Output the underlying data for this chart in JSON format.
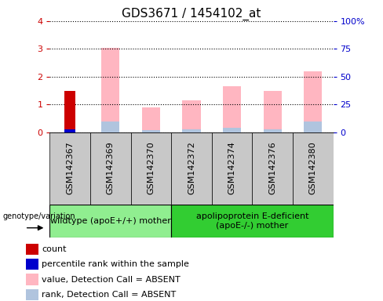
{
  "title": "GDS3671 / 1454102_at",
  "samples": [
    "GSM142367",
    "GSM142369",
    "GSM142370",
    "GSM142372",
    "GSM142374",
    "GSM142376",
    "GSM142380"
  ],
  "groups": [
    "wildtype (apoE+/+) mother",
    "apolipoprotein E-deficient\n(apoE-/-) mother"
  ],
  "group_colors": [
    "#90EE90",
    "#32CD32"
  ],
  "ylim_left": [
    0,
    4
  ],
  "ylim_right": [
    0,
    100
  ],
  "yticks_left": [
    0,
    1,
    2,
    3,
    4
  ],
  "yticks_right": [
    0,
    25,
    50,
    75,
    100
  ],
  "yticklabels_right": [
    "0",
    "25",
    "50",
    "75",
    "100%"
  ],
  "red_bars": [
    1.5,
    0,
    0,
    0,
    0,
    0,
    0
  ],
  "blue_bars": [
    0.1,
    0,
    0,
    0,
    0,
    0,
    0
  ],
  "pink_bars": [
    0,
    3.05,
    0.9,
    1.15,
    1.65,
    1.5,
    2.2
  ],
  "lightblue_bars": [
    0,
    0.38,
    0.07,
    0.12,
    0.18,
    0.12,
    0.38
  ],
  "red_color": "#CC0000",
  "blue_color": "#0000CC",
  "pink_color": "#FFB6C1",
  "lightblue_color": "#B0C4DE",
  "grey_color": "#C8C8C8",
  "left_axis_color": "#CC0000",
  "right_axis_color": "#0000CC",
  "legend_items": [
    {
      "label": "count",
      "color": "#CC0000"
    },
    {
      "label": "percentile rank within the sample",
      "color": "#0000CC"
    },
    {
      "label": "value, Detection Call = ABSENT",
      "color": "#FFB6C1"
    },
    {
      "label": "rank, Detection Call = ABSENT",
      "color": "#B0C4DE"
    }
  ],
  "genotype_label": "genotype/variation",
  "font_size_title": 11,
  "font_size_ticks": 8,
  "font_size_legend": 8,
  "font_size_group": 8,
  "bar_width": 0.45
}
